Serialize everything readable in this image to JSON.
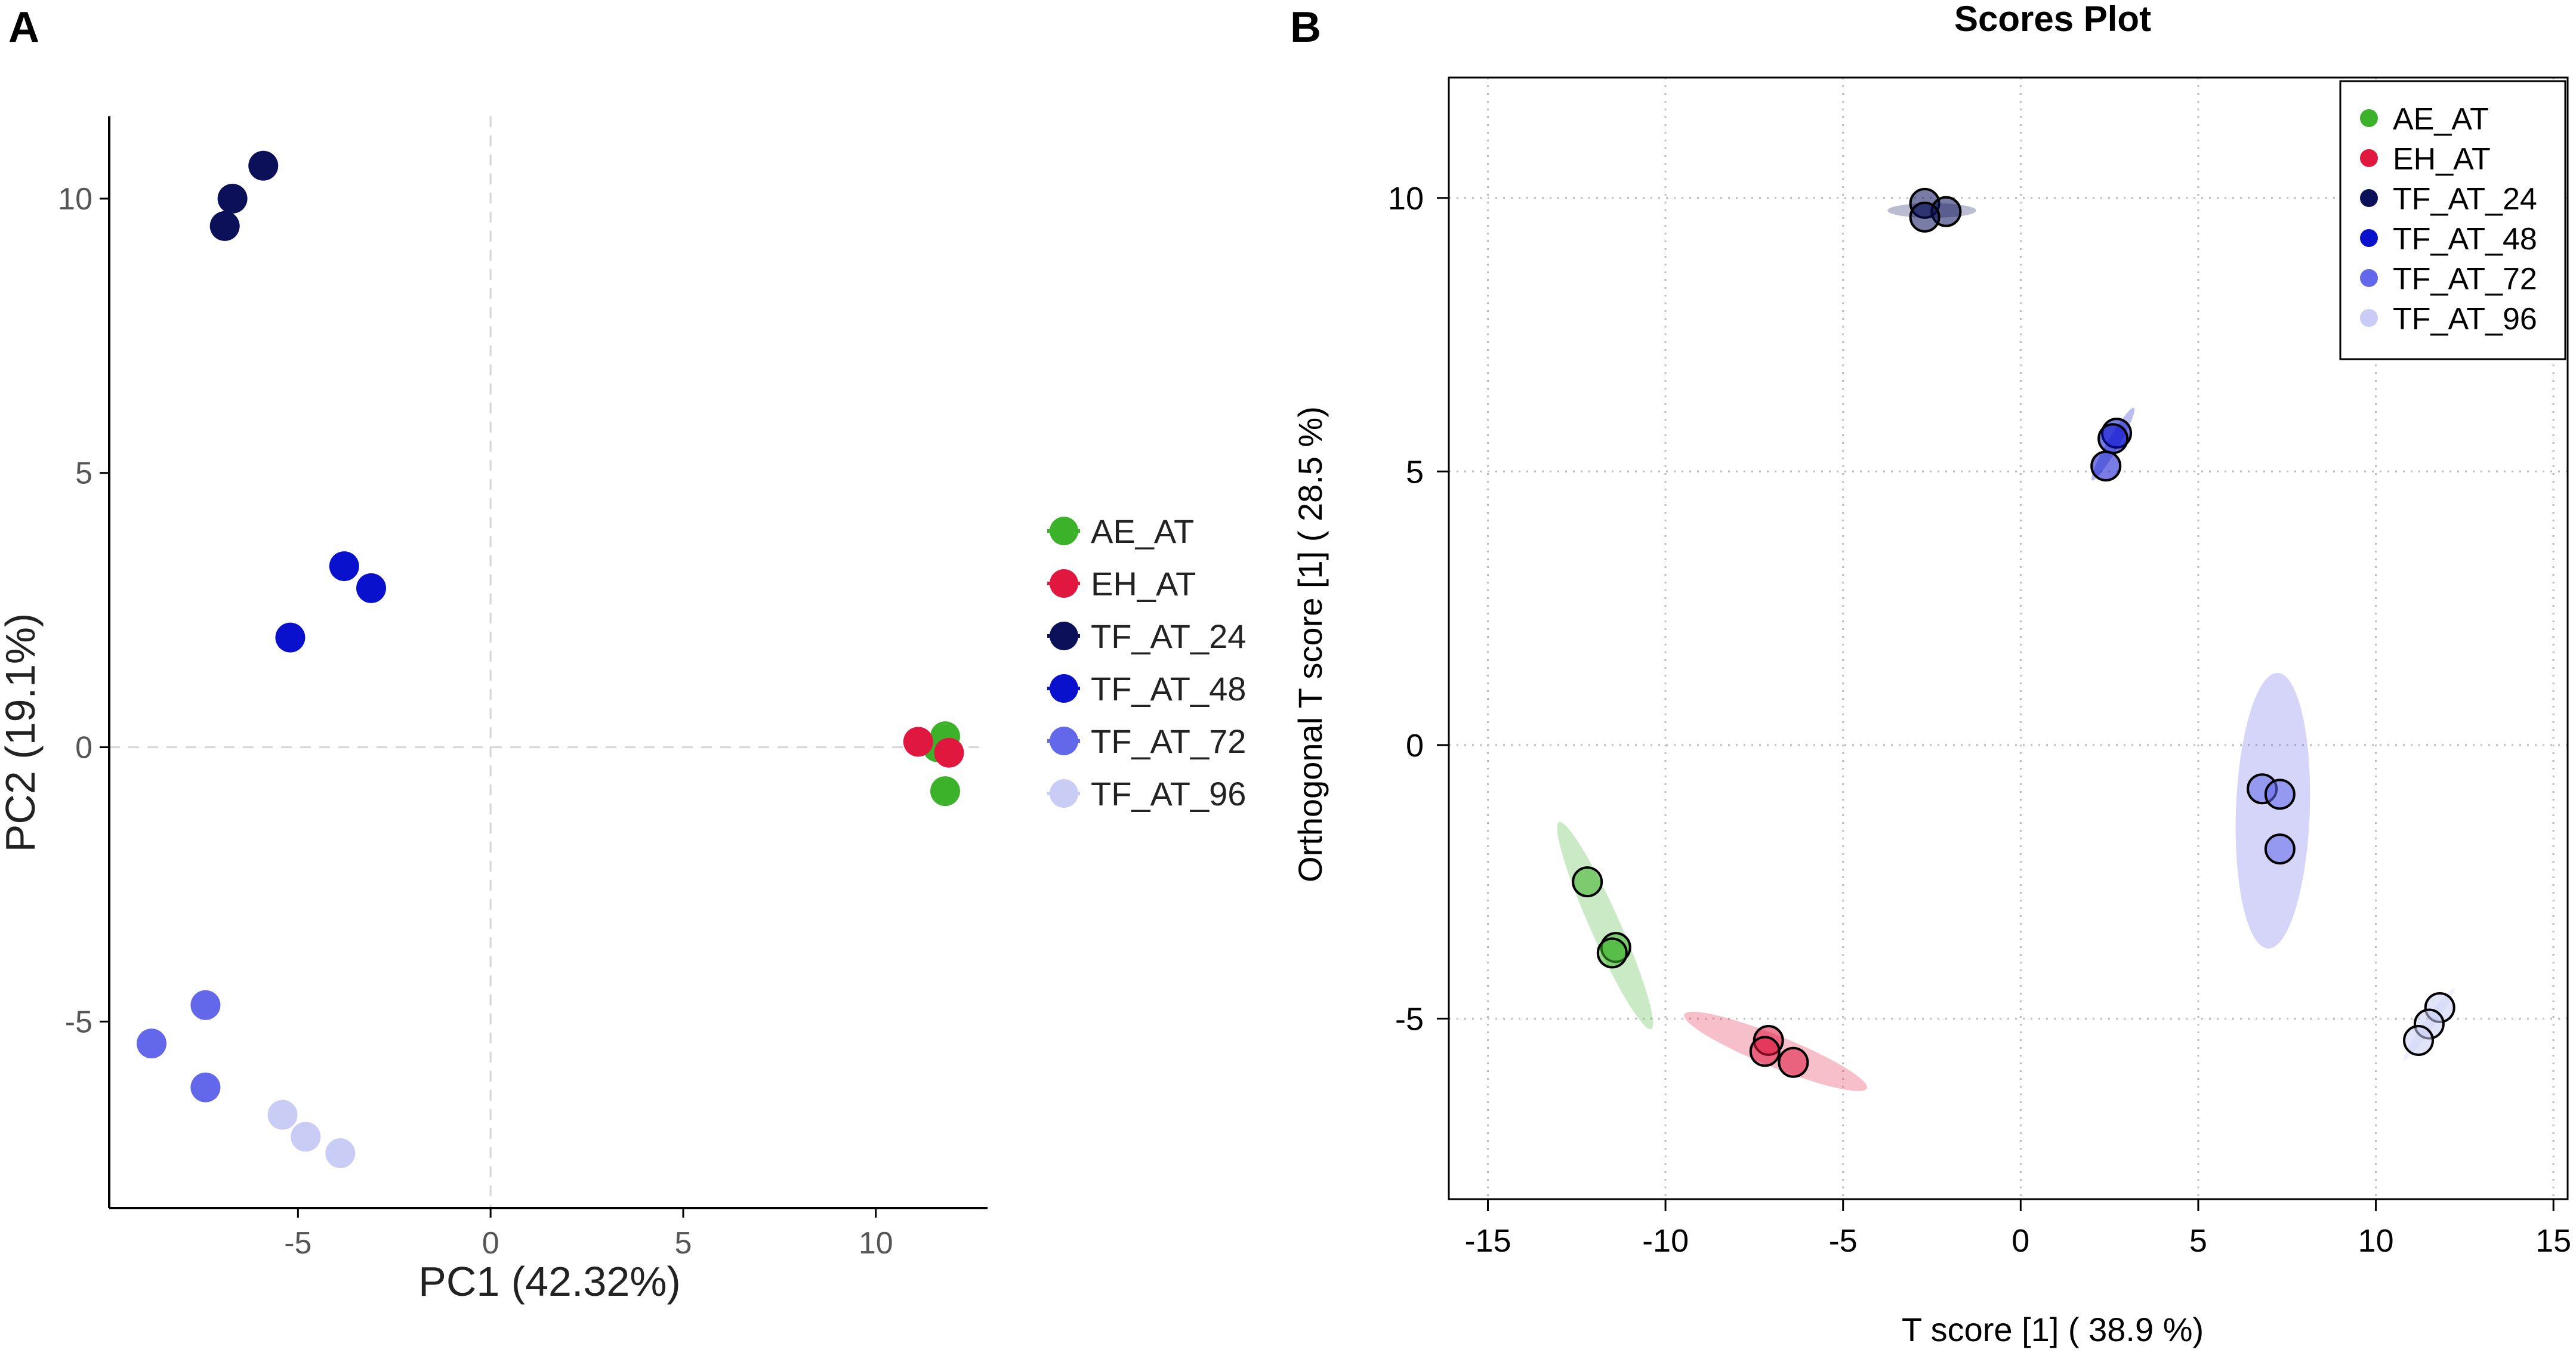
{
  "panel_labels": {
    "a": "A",
    "b": "B"
  },
  "colors": {
    "AE_AT": "#3cb22a",
    "EH_AT": "#e0183f",
    "TF_AT_24": "#0b1059",
    "TF_AT_48": "#0a11cc",
    "TF_AT_72": "#6367ea",
    "TF_AT_96": "#c9ccf4"
  },
  "chart_data": [
    {
      "type": "scatter",
      "title": "",
      "xlabel": "PC1 (42.32%)",
      "ylabel": "PC2 (19.1%)",
      "xlim": [
        -9.9,
        12.9
      ],
      "ylim": [
        -8.4,
        11.5
      ],
      "xticks": [
        -5,
        0,
        5,
        10
      ],
      "yticks": [
        -5,
        0,
        5,
        10
      ],
      "xtick_labels": [
        "-5",
        "0",
        "5",
        "10"
      ],
      "ytick_labels": [
        "-5",
        "0",
        "5",
        "10"
      ],
      "reference_lines": {
        "x": 0,
        "y": 0
      },
      "legend_position": "right",
      "series": [
        {
          "name": "AE_AT",
          "points": [
            [
              11.8,
              0.2
            ],
            [
              11.6,
              0.0
            ],
            [
              11.8,
              -0.8
            ]
          ]
        },
        {
          "name": "EH_AT",
          "points": [
            [
              11.1,
              0.1
            ],
            [
              11.9,
              -0.1
            ]
          ]
        },
        {
          "name": "TF_AT_24",
          "points": [
            [
              -5.9,
              10.6
            ],
            [
              -6.7,
              10.0
            ],
            [
              -6.9,
              9.5
            ]
          ]
        },
        {
          "name": "TF_AT_48",
          "points": [
            [
              -3.8,
              3.3
            ],
            [
              -3.1,
              2.9
            ],
            [
              -5.2,
              2.0
            ]
          ]
        },
        {
          "name": "TF_AT_72",
          "points": [
            [
              -7.4,
              -4.7
            ],
            [
              -8.8,
              -5.4
            ],
            [
              -7.4,
              -6.2
            ]
          ]
        },
        {
          "name": "TF_AT_96",
          "points": [
            [
              -5.4,
              -6.7
            ],
            [
              -4.8,
              -7.1
            ],
            [
              -3.9,
              -7.4
            ]
          ]
        }
      ]
    },
    {
      "type": "scatter",
      "title": "Scores Plot",
      "xlabel": "T score [1] ( 38.9 %)",
      "ylabel": "Orthogonal T score [1] ( 28.5 %)",
      "xlim": [
        -16.1,
        15.4
      ],
      "ylim": [
        -8.3,
        12.2
      ],
      "xticks": [
        -15,
        -10,
        -5,
        0,
        5,
        10,
        15
      ],
      "yticks": [
        -5,
        0,
        5,
        10
      ],
      "xtick_labels": [
        "-15",
        "-10",
        "-5",
        "0",
        "5",
        "10",
        "15"
      ],
      "ytick_labels": [
        "-5",
        "0",
        "5",
        "10"
      ],
      "grid": true,
      "legend_position": "top-right",
      "series": [
        {
          "name": "AE_AT",
          "points": [
            [
              -12.2,
              -2.5
            ],
            [
              -11.4,
              -3.7
            ],
            [
              -11.5,
              -3.8
            ]
          ],
          "ellipse": {
            "cx": -11.7,
            "cy": -3.3,
            "rx": 2.3,
            "ry": 0.3,
            "angle": -66
          }
        },
        {
          "name": "EH_AT",
          "points": [
            [
              -7.1,
              -5.4
            ],
            [
              -7.2,
              -5.6
            ],
            [
              -6.4,
              -5.8
            ]
          ],
          "ellipse": {
            "cx": -6.9,
            "cy": -5.6,
            "rx": 2.0,
            "ry": 0.32,
            "angle": -22
          }
        },
        {
          "name": "TF_AT_24",
          "points": [
            [
              -2.7,
              9.9
            ],
            [
              -2.1,
              9.75
            ],
            [
              -2.7,
              9.65
            ]
          ],
          "ellipse": {
            "cx": -2.5,
            "cy": 9.77,
            "rx": 0.9,
            "ry": 0.15,
            "angle": 0
          }
        },
        {
          "name": "TF_AT_48",
          "points": [
            [
              2.7,
              5.7
            ],
            [
              2.6,
              5.6
            ],
            [
              2.4,
              5.1
            ]
          ],
          "ellipse": {
            "cx": 2.6,
            "cy": 5.5,
            "rx": 0.85,
            "ry": 0.12,
            "angle": 60
          }
        },
        {
          "name": "TF_AT_72",
          "points": [
            [
              6.8,
              -0.8
            ],
            [
              7.3,
              -0.9
            ],
            [
              7.3,
              -1.9
            ]
          ],
          "ellipse": {
            "cx": 7.1,
            "cy": -1.2,
            "rx": 2.8,
            "ry": 0.75,
            "angle": 88
          }
        },
        {
          "name": "TF_AT_96",
          "points": [
            [
              11.8,
              -4.8
            ],
            [
              11.5,
              -5.1
            ],
            [
              11.2,
              -5.4
            ]
          ],
          "ellipse": {
            "cx": 11.5,
            "cy": -5.1,
            "rx": 0.9,
            "ry": 0.1,
            "angle": 55
          }
        }
      ]
    }
  ]
}
